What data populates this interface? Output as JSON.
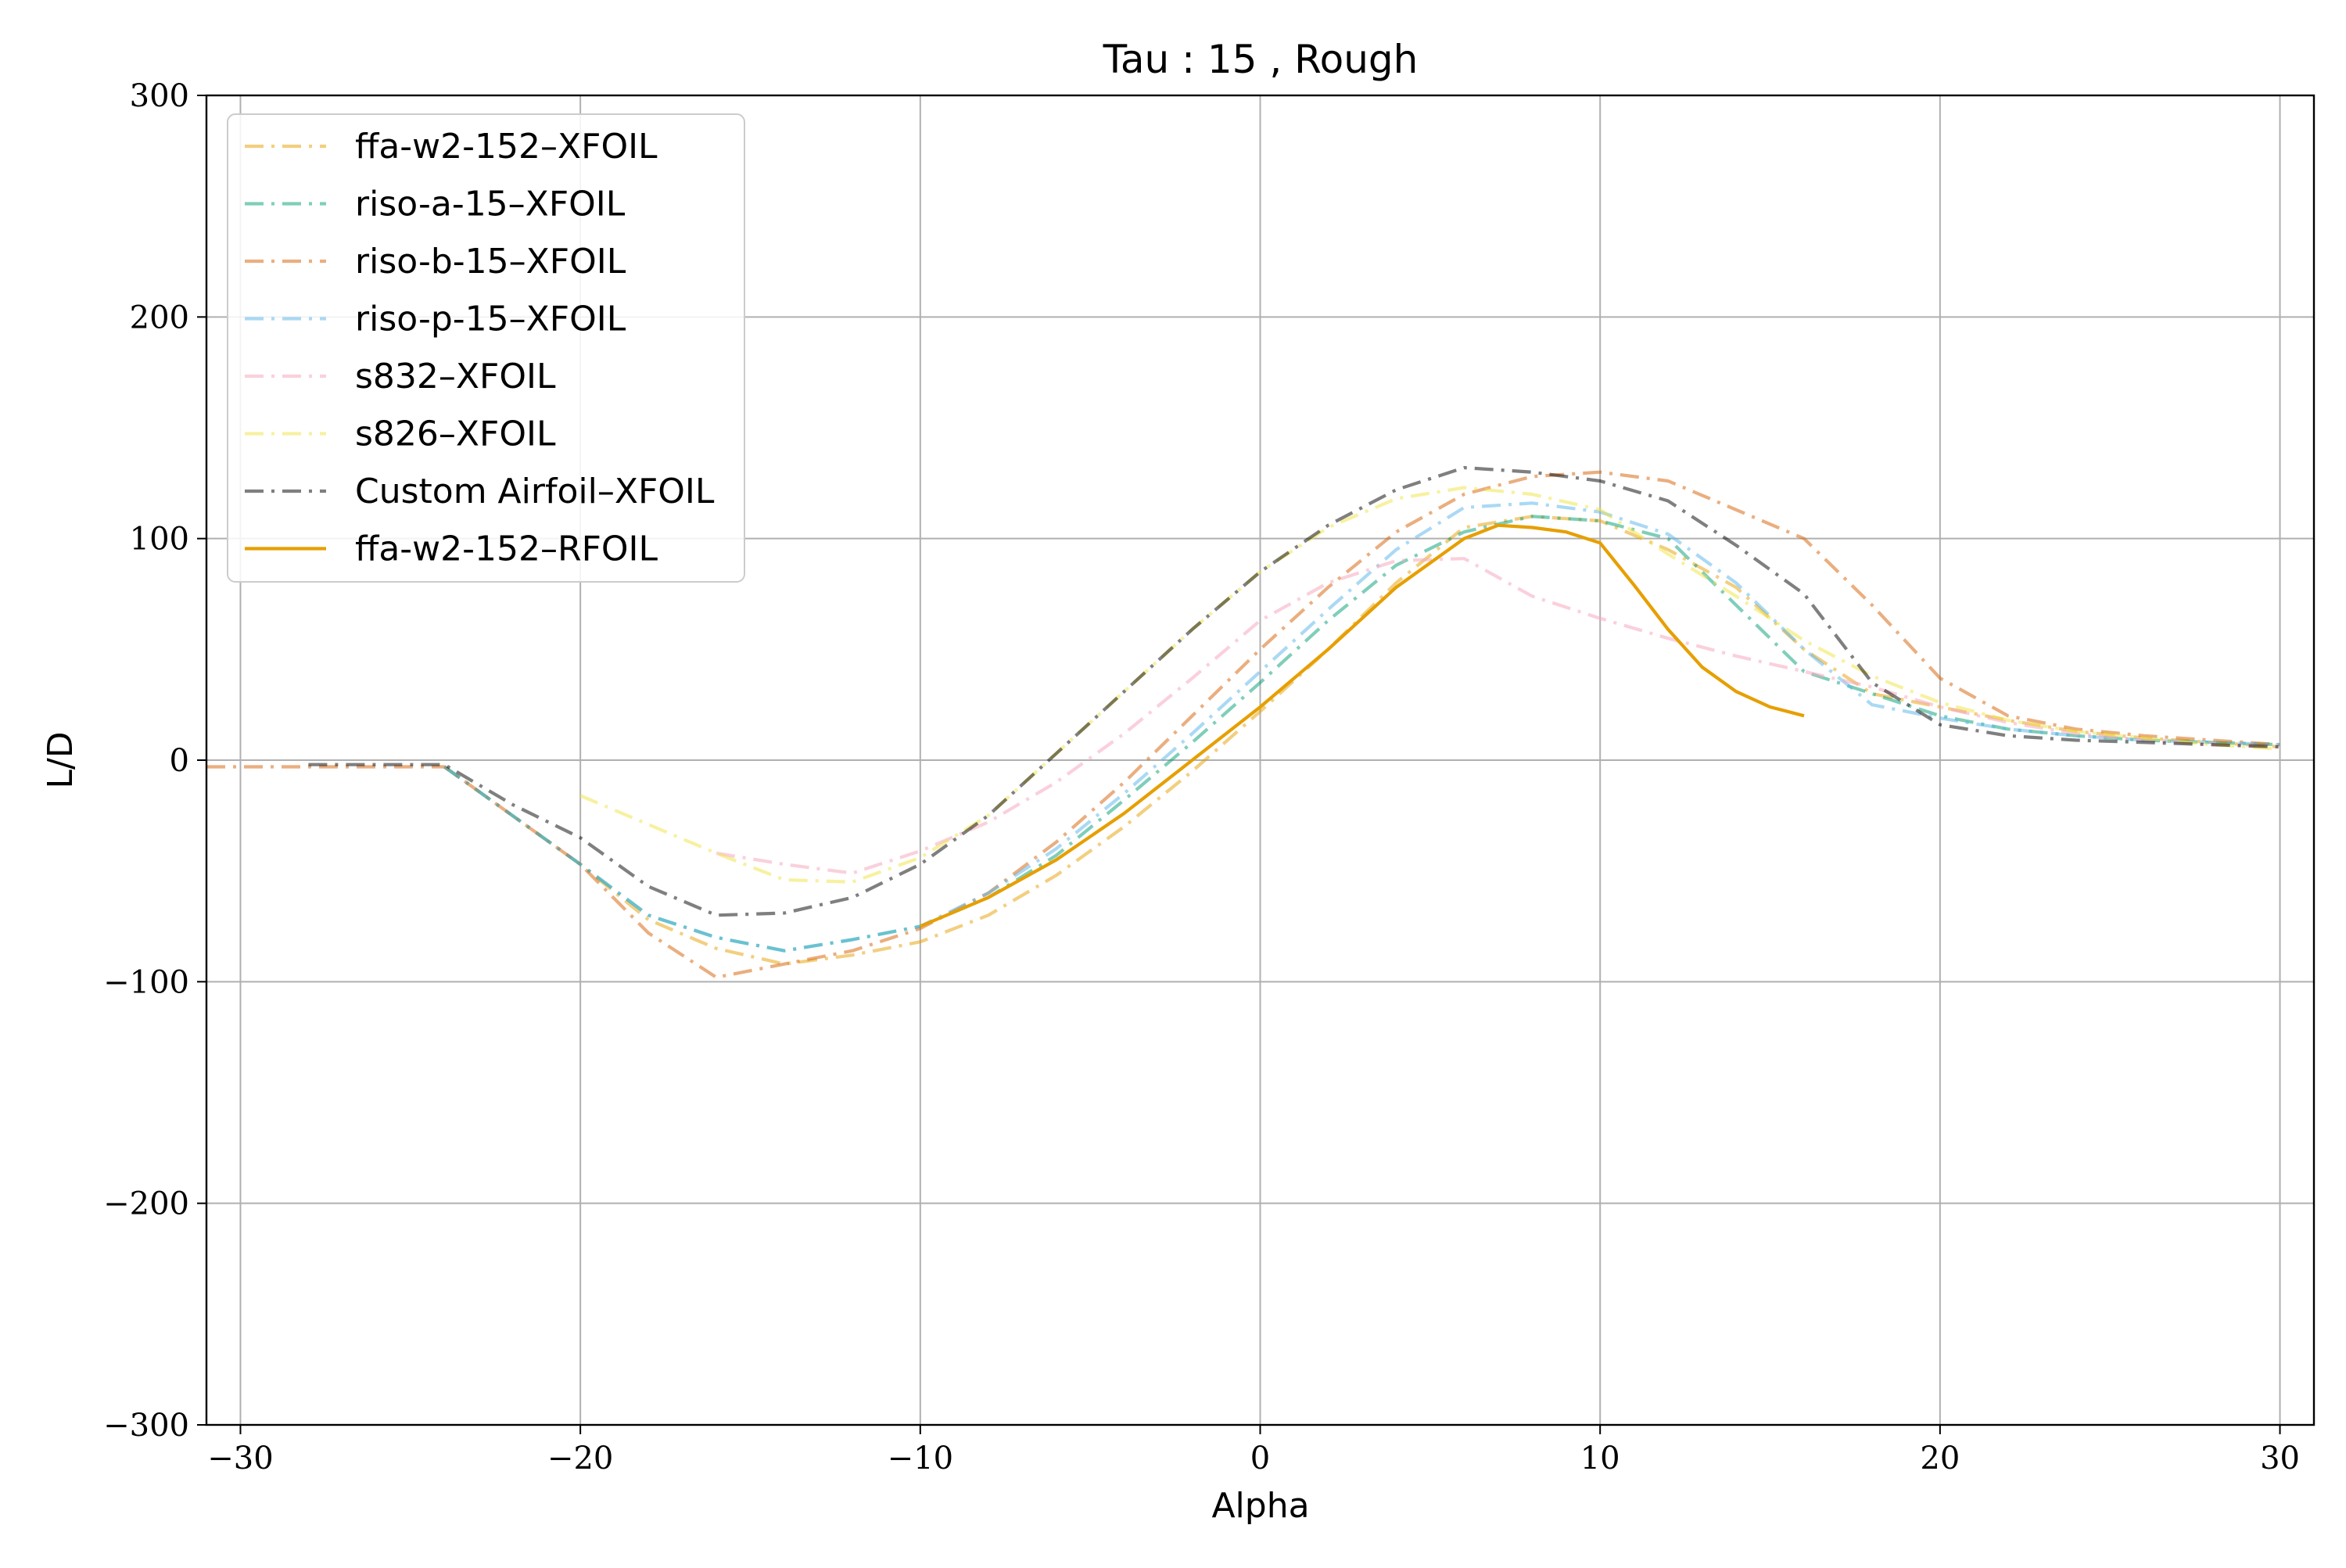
{
  "chart_data": {
    "type": "line",
    "title": "Tau : 15 , Rough",
    "xlabel": "Alpha",
    "ylabel": "L/D",
    "xlim": [
      -31,
      31
    ],
    "ylim": [
      -300,
      300
    ],
    "xticks": [
      -30,
      -20,
      -10,
      0,
      10,
      20,
      30
    ],
    "xtick_labels": [
      "−30",
      "−20",
      "−10",
      "0",
      "10",
      "20",
      "30"
    ],
    "yticks": [
      -300,
      -200,
      -100,
      0,
      100,
      200,
      300
    ],
    "ytick_labels": [
      "−300",
      "−200",
      "−100",
      "0",
      "100",
      "200",
      "300"
    ],
    "grid": true,
    "legend_position": "upper-left",
    "series": [
      {
        "name": "ffa-w2-152–XFOIL",
        "color": "#e69f00",
        "style": "dashdot",
        "opacity": 0.5,
        "x": [
          -24,
          -22,
          -20,
          -18,
          -16,
          -14,
          -12,
          -10,
          -8,
          -6,
          -4,
          -2,
          0,
          2,
          4,
          6,
          8,
          10,
          12,
          14,
          16,
          18,
          20,
          22,
          24,
          26,
          28,
          30
        ],
        "y": [
          -3,
          -25,
          -47,
          -72,
          -85,
          -92,
          -88,
          -82,
          -70,
          -52,
          -30,
          -5,
          22,
          50,
          80,
          105,
          110,
          108,
          95,
          78,
          50,
          30,
          24,
          18,
          13,
          10,
          8,
          6
        ]
      },
      {
        "name": "riso-a-15–XFOIL",
        "color": "#009e73",
        "style": "dashdot",
        "opacity": 0.5,
        "x": [
          -24,
          -22,
          -20,
          -18,
          -16,
          -14,
          -12,
          -10,
          -8,
          -6,
          -4,
          -2,
          0,
          2,
          4,
          6,
          8,
          10,
          12,
          14,
          16,
          18,
          20,
          22,
          24,
          26,
          28,
          30
        ],
        "y": [
          -3,
          -25,
          -47,
          -70,
          -80,
          -86,
          -81,
          -75,
          -62,
          -43,
          -18,
          8,
          35,
          63,
          88,
          103,
          110,
          108,
          100,
          70,
          40,
          30,
          20,
          14,
          11,
          9,
          8,
          7
        ]
      },
      {
        "name": "riso-b-15–XFOIL",
        "color": "#d55e00",
        "style": "dashdot",
        "opacity": 0.5,
        "x": [
          -31,
          -29,
          -27,
          -25,
          -24,
          -22,
          -20,
          -18,
          -16,
          -14,
          -12,
          -10,
          -8,
          -6,
          -4,
          -2,
          0,
          2,
          4,
          6,
          8,
          10,
          12,
          14,
          16,
          18,
          20,
          22,
          24,
          26,
          28,
          30
        ],
        "y": [
          -3,
          -3,
          -3,
          -3,
          -3,
          -25,
          -47,
          -78,
          -98,
          -92,
          -86,
          -76,
          -60,
          -37,
          -10,
          20,
          50,
          78,
          103,
          120,
          128,
          130,
          126,
          113,
          100,
          70,
          37,
          20,
          14,
          11,
          9,
          7
        ]
      },
      {
        "name": "riso-p-15–XFOIL",
        "color": "#56b4e9",
        "style": "dashdot",
        "opacity": 0.5,
        "x": [
          -24,
          -22,
          -20,
          -18,
          -16,
          -14,
          -12,
          -10,
          -8,
          -6,
          -4,
          -2,
          0,
          2,
          4,
          6,
          8,
          10,
          12,
          14,
          16,
          18,
          20,
          22,
          24,
          26,
          28,
          30
        ],
        "y": [
          -3,
          -25,
          -47,
          -70,
          -80,
          -86,
          -81,
          -75,
          -60,
          -40,
          -15,
          12,
          40,
          68,
          95,
          114,
          116,
          112,
          102,
          80,
          50,
          25,
          19,
          14,
          11,
          9,
          8,
          7
        ]
      },
      {
        "name": "s832–XFOIL",
        "color": "#f5a9c0",
        "style": "dashdot",
        "opacity": 0.55,
        "x": [
          -16,
          -14,
          -12,
          -10,
          -8,
          -6,
          -4,
          -2,
          0,
          2,
          4,
          6,
          8,
          10,
          12,
          14,
          16,
          18,
          20,
          22,
          24,
          26,
          28,
          30
        ],
        "y": [
          -42,
          -47,
          -51,
          -41,
          -28,
          -10,
          12,
          37,
          63,
          80,
          90,
          91,
          74,
          64,
          55,
          47,
          40,
          33,
          24,
          17,
          12,
          9,
          7,
          6
        ]
      },
      {
        "name": "s826–XFOIL",
        "color": "#f0e442",
        "style": "dashdot",
        "opacity": 0.5,
        "x": [
          -20,
          -18,
          -16,
          -14,
          -12,
          -10,
          -8,
          -6,
          -4,
          -2,
          0,
          2,
          4,
          6,
          8,
          10,
          12,
          14,
          16,
          18,
          20,
          22,
          24,
          26,
          28,
          30
        ],
        "y": [
          -16,
          -29,
          -42,
          -54,
          -55,
          -44,
          -25,
          3,
          31,
          59,
          85,
          105,
          118,
          123,
          120,
          113,
          93,
          74,
          54,
          38,
          26,
          18,
          13,
          10,
          7,
          5
        ]
      },
      {
        "name": "Custom Airfoil–XFOIL",
        "color": "#000000",
        "style": "dashdot",
        "opacity": 0.5,
        "x": [
          -28,
          -26,
          -24,
          -22,
          -20,
          -18,
          -16,
          -14,
          -12,
          -10,
          -8,
          -6,
          -4,
          -2,
          0,
          2,
          4,
          6,
          8,
          10,
          12,
          14,
          16,
          17,
          18,
          20,
          22,
          24,
          26,
          28,
          30
        ],
        "y": [
          -2,
          -2,
          -2,
          -20,
          -35,
          -57,
          -70,
          -69,
          -62,
          -47,
          -25,
          3,
          31,
          59,
          85,
          106,
          122,
          132,
          130,
          126,
          117,
          97,
          75,
          55,
          35,
          16,
          11,
          9,
          8,
          7,
          6
        ]
      },
      {
        "name": "ffa-w2-152–RFOIL",
        "color": "#e69f00",
        "style": "solid",
        "opacity": 1,
        "x": [
          -10,
          -8,
          -6,
          -4,
          -2,
          0,
          2,
          4,
          6,
          7,
          8,
          9,
          10,
          11,
          12,
          13,
          14,
          15,
          16
        ],
        "y": [
          -75,
          -62,
          -45,
          -24,
          0,
          24,
          50,
          78,
          100,
          106,
          105,
          103,
          98,
          79,
          59,
          42,
          31,
          24,
          20
        ]
      }
    ]
  }
}
